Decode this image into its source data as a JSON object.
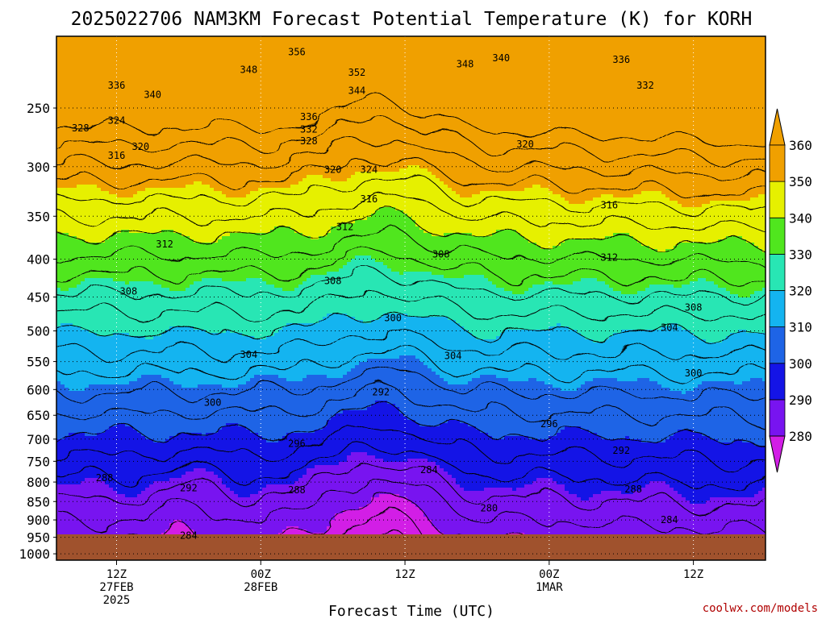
{
  "chart_data": {
    "type": "contour",
    "title": "2025022706 NAM3KM Forecast Potential Temperature (K) for KORH",
    "xlabel": "Forecast Time (UTC)",
    "ylabel": "",
    "credit": "coolwx.com/models",
    "x_range": [
      "2025-02-27T07:00Z",
      "2025-03-01T18:00Z"
    ],
    "x_ticks": [
      {
        "time": "2025-02-27T12:00Z",
        "lines": [
          "12Z",
          "27FEB",
          "2025"
        ]
      },
      {
        "time": "2025-02-28T00:00Z",
        "lines": [
          "00Z",
          "28FEB"
        ]
      },
      {
        "time": "2025-02-28T12:00Z",
        "lines": [
          "12Z"
        ]
      },
      {
        "time": "2025-03-01T00:00Z",
        "lines": [
          "00Z",
          "1MAR"
        ]
      },
      {
        "time": "2025-03-01T12:00Z",
        "lines": [
          "12Z"
        ]
      }
    ],
    "y_axis": {
      "log_scale": true,
      "inverted": true,
      "range": [
        1020,
        200
      ],
      "ticks": [
        250,
        300,
        350,
        400,
        450,
        500,
        550,
        600,
        650,
        700,
        750,
        800,
        850,
        900,
        950,
        1000
      ]
    },
    "colorbar": {
      "levels": [
        280,
        290,
        300,
        310,
        320,
        330,
        340,
        350,
        360
      ],
      "colors": [
        "#d21ee6",
        "#7814f0",
        "#1414e6",
        "#1e64e6",
        "#14b4f0",
        "#28e6b4",
        "#50e61e",
        "#e6f000",
        "#f0a000"
      ],
      "extend": "both"
    },
    "ground_color": "#a0522d",
    "grid": true,
    "contour_interval": 4,
    "labeled_levels": [
      {
        "value": 356,
        "time": "2025-02-28T03:00Z",
        "pressure": 210
      },
      {
        "value": 348,
        "time": "2025-02-27T23:00Z",
        "pressure": 222
      },
      {
        "value": 352,
        "time": "2025-02-28T08:00Z",
        "pressure": 224
      },
      {
        "value": 348,
        "time": "2025-02-28T17:00Z",
        "pressure": 218
      },
      {
        "value": 340,
        "time": "2025-02-28T20:00Z",
        "pressure": 214
      },
      {
        "value": 336,
        "time": "2025-03-01T06:00Z",
        "pressure": 215
      },
      {
        "value": 332,
        "time": "2025-03-01T08:00Z",
        "pressure": 233
      },
      {
        "value": 336,
        "time": "2025-02-27T12:00Z",
        "pressure": 233
      },
      {
        "value": 340,
        "time": "2025-02-27T15:00Z",
        "pressure": 240
      },
      {
        "value": 344,
        "time": "2025-02-28T08:00Z",
        "pressure": 237
      },
      {
        "value": 328,
        "time": "2025-02-27T09:00Z",
        "pressure": 266
      },
      {
        "value": 324,
        "time": "2025-02-27T12:00Z",
        "pressure": 260
      },
      {
        "value": 336,
        "time": "2025-02-28T04:00Z",
        "pressure": 257
      },
      {
        "value": 332,
        "time": "2025-02-28T04:00Z",
        "pressure": 267
      },
      {
        "value": 328,
        "time": "2025-02-28T04:00Z",
        "pressure": 277
      },
      {
        "value": 320,
        "time": "2025-02-27T14:00Z",
        "pressure": 282
      },
      {
        "value": 316,
        "time": "2025-02-27T12:00Z",
        "pressure": 290
      },
      {
        "value": 320,
        "time": "2025-02-28T06:00Z",
        "pressure": 303
      },
      {
        "value": 324,
        "time": "2025-02-28T09:00Z",
        "pressure": 303
      },
      {
        "value": 320,
        "time": "2025-02-28T22:00Z",
        "pressure": 280
      },
      {
        "value": 316,
        "time": "2025-02-28T09:00Z",
        "pressure": 332
      },
      {
        "value": 316,
        "time": "2025-03-01T05:00Z",
        "pressure": 338
      },
      {
        "value": 312,
        "time": "2025-02-28T07:00Z",
        "pressure": 362
      },
      {
        "value": 312,
        "time": "2025-02-27T16:00Z",
        "pressure": 382
      },
      {
        "value": 312,
        "time": "2025-03-01T05:00Z",
        "pressure": 398
      },
      {
        "value": 308,
        "time": "2025-02-28T15:00Z",
        "pressure": 394
      },
      {
        "value": 308,
        "time": "2025-02-28T06:00Z",
        "pressure": 428
      },
      {
        "value": 308,
        "time": "2025-02-27T13:00Z",
        "pressure": 442
      },
      {
        "value": 308,
        "time": "2025-03-01T12:00Z",
        "pressure": 465
      },
      {
        "value": 304,
        "time": "2025-03-01T10:00Z",
        "pressure": 495
      },
      {
        "value": 300,
        "time": "2025-02-28T11:00Z",
        "pressure": 480
      },
      {
        "value": 304,
        "time": "2025-02-27T23:00Z",
        "pressure": 538
      },
      {
        "value": 304,
        "time": "2025-02-28T16:00Z",
        "pressure": 540
      },
      {
        "value": 300,
        "time": "2025-03-01T12:00Z",
        "pressure": 570
      },
      {
        "value": 300,
        "time": "2025-02-27T20:00Z",
        "pressure": 625
      },
      {
        "value": 292,
        "time": "2025-02-28T10:00Z",
        "pressure": 605
      },
      {
        "value": 296,
        "time": "2025-03-01T00:00Z",
        "pressure": 668
      },
      {
        "value": 296,
        "time": "2025-02-28T03:00Z",
        "pressure": 710
      },
      {
        "value": 292,
        "time": "2025-03-01T06:00Z",
        "pressure": 725
      },
      {
        "value": 284,
        "time": "2025-02-28T14:00Z",
        "pressure": 770
      },
      {
        "value": 288,
        "time": "2025-02-27T11:00Z",
        "pressure": 790
      },
      {
        "value": 292,
        "time": "2025-02-27T18:00Z",
        "pressure": 815
      },
      {
        "value": 288,
        "time": "2025-02-28T03:00Z",
        "pressure": 820
      },
      {
        "value": 288,
        "time": "2025-03-01T07:00Z",
        "pressure": 818
      },
      {
        "value": 280,
        "time": "2025-02-28T19:00Z",
        "pressure": 868
      },
      {
        "value": 284,
        "time": "2025-03-01T10:00Z",
        "pressure": 900
      },
      {
        "value": 284,
        "time": "2025-02-27T18:00Z",
        "pressure": 945
      }
    ]
  }
}
